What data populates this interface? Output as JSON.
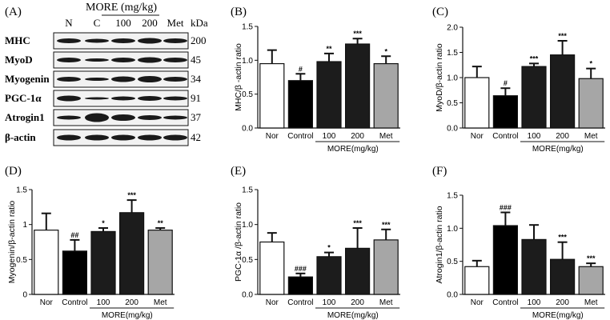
{
  "western_blot": {
    "panel_letter": "(A)",
    "dose_header": "MORE (mg/kg)",
    "lane_labels": [
      "N",
      "C",
      "100",
      "200",
      "Met"
    ],
    "kda_label": "kDa",
    "rows": [
      {
        "name": "MHC",
        "kda": "200"
      },
      {
        "name": "MyoD",
        "kda": "45"
      },
      {
        "name": "Myogenin",
        "kda": "34"
      },
      {
        "name": "PGC-1α",
        "kda": "91"
      },
      {
        "name": "Atrogin1",
        "kda": "37"
      },
      {
        "name": "β-actin",
        "kda": "42"
      }
    ]
  },
  "colors": {
    "bar_nor": "#ffffff",
    "bar_control": "#000000",
    "bar_more": "#1c1c1c",
    "bar_met": "#a6a6a6",
    "band": "#1a1a1a",
    "blot_background": "#f2f2f2"
  },
  "chart_data": [
    {
      "panel": "(B)",
      "type": "bar",
      "ylabel": "MHC/β -actin ratio",
      "categories": [
        "Nor",
        "Control",
        "100",
        "200",
        "Met"
      ],
      "group_label": "MORE(mg/kg)",
      "values": [
        0.95,
        0.7,
        0.98,
        1.24,
        0.95
      ],
      "errors": [
        0.2,
        0.1,
        0.12,
        0.08,
        0.11
      ],
      "annotations": [
        "",
        "#",
        "**",
        "***",
        "*"
      ],
      "ylim": [
        0,
        1.5
      ],
      "yticks": [
        "0.0",
        "0.5",
        "1.0",
        "1.5"
      ]
    },
    {
      "panel": "(C)",
      "type": "bar",
      "ylabel": "MyoD/β-actin ratio",
      "categories": [
        "Nor",
        "Control",
        "100",
        "200",
        "Met"
      ],
      "group_label": "MORE(mg/kg)",
      "values": [
        1.0,
        0.64,
        1.22,
        1.45,
        0.98
      ],
      "errors": [
        0.22,
        0.15,
        0.06,
        0.28,
        0.2
      ],
      "annotations": [
        "",
        "#",
        "***",
        "***",
        "*"
      ],
      "ylim": [
        0,
        2.0
      ],
      "yticks": [
        "0.0",
        "0.5",
        "1.0",
        "1.5",
        "2.0"
      ]
    },
    {
      "panel": "(D)",
      "type": "bar",
      "ylabel": "Myogenin/β-actin ratio",
      "categories": [
        "Nor",
        "Control",
        "100",
        "200",
        "Met"
      ],
      "group_label": "MORE(mg/kg)",
      "values": [
        0.92,
        0.62,
        0.9,
        1.17,
        0.92
      ],
      "errors": [
        0.24,
        0.16,
        0.05,
        0.18,
        0.03
      ],
      "annotations": [
        "",
        "##",
        "*",
        "***",
        "**"
      ],
      "ylim": [
        0,
        1.5
      ],
      "yticks": [
        "0",
        "0.5",
        "1",
        "1.5"
      ]
    },
    {
      "panel": "(E)",
      "type": "bar",
      "ylabel": "PGC-1α /β-actin ratio",
      "categories": [
        "Nor",
        "Control",
        "100",
        "200",
        "Met"
      ],
      "group_label": "MORE(mg/kg)",
      "values": [
        0.75,
        0.25,
        0.54,
        0.66,
        0.78
      ],
      "errors": [
        0.13,
        0.05,
        0.06,
        0.29,
        0.15
      ],
      "annotations": [
        "",
        "###",
        "*",
        "***",
        "***"
      ],
      "ylim": [
        0,
        1.5
      ],
      "yticks": [
        "0.0",
        "0.5",
        "1.0",
        "1.5"
      ]
    },
    {
      "panel": "(F)",
      "type": "bar",
      "ylabel": "Atrogin1/β-actin ratio",
      "categories": [
        "Nor",
        "Control",
        "100",
        "200",
        "Met"
      ],
      "group_label": "MORE(mg/kg)",
      "values": [
        0.42,
        1.04,
        0.83,
        0.53,
        0.42
      ],
      "errors": [
        0.09,
        0.2,
        0.22,
        0.26,
        0.05
      ],
      "annotations": [
        "",
        "###",
        "",
        "***",
        "***"
      ],
      "ylim": [
        0,
        1.5
      ],
      "yticks": [
        "0.0",
        "0.5",
        "1.0",
        "1.5"
      ]
    }
  ]
}
